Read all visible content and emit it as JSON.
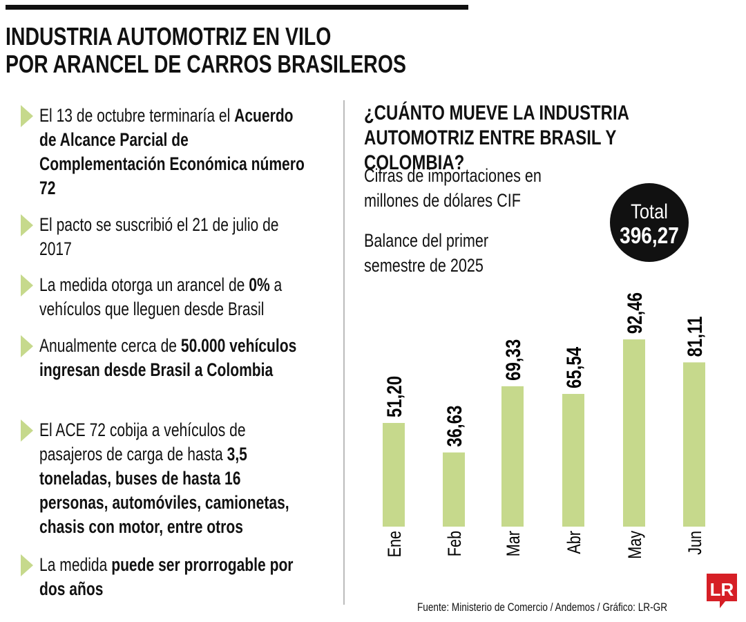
{
  "header": {
    "title": [
      "INDUSTRIA AUTOMOTRIZ EN VILO",
      "POR ARANCEL DE CARROS BRASILEROS"
    ]
  },
  "bullets": [
    [
      {
        "text": "El 13 de octubre terminaría el ",
        "bold": false
      },
      {
        "text": "Acuerdo de Alcance Parcial de Complementación Económica número 72",
        "bold": true
      }
    ],
    [
      {
        "text": "El pacto se suscribió el 21 de julio de 2017",
        "bold": false
      }
    ],
    [
      {
        "text": "La medida otorga un arancel de ",
        "bold": false
      },
      {
        "text": "0%",
        "bold": true
      },
      {
        "text": " a vehículos que lleguen desde Brasil",
        "bold": false
      }
    ],
    [
      {
        "text": "Anualmente cerca de ",
        "bold": false
      },
      {
        "text": "50.000 vehículos ingresan desde Brasil a Colombia",
        "bold": true
      }
    ],
    [
      {
        "text": "El ACE 72 cobija a vehículos de pasajeros de carga de hasta ",
        "bold": false
      },
      {
        "text": "3,5 toneladas, buses de hasta 16 personas, automóviles, camionetas, chasis con motor, entre otros",
        "bold": true
      }
    ],
    [
      {
        "text": "La medida ",
        "bold": false
      },
      {
        "text": "puede ser prorrogable por dos años",
        "bold": true
      }
    ]
  ],
  "chart_data": {
    "type": "bar",
    "title": "¿CUÁNTO MUEVE LA INDUSTRIA AUTOMOTRIZ ENTRE BRASIL Y COLOMBIA?",
    "subtitle": "Cifras de importaciones en millones de dólares CIF",
    "note": "Balance del primer semestre de 2025",
    "total": {
      "label": "Total",
      "text": "396,27"
    },
    "categories": [
      "Ene",
      "Feb",
      "Mar",
      "Abr",
      "May",
      "Jun"
    ],
    "values": [
      51.2,
      36.63,
      69.33,
      65.54,
      92.46,
      81.11
    ],
    "value_labels": [
      "51,20",
      "36,63",
      "69,33",
      "65,54",
      "92,46",
      "81,11"
    ],
    "color": "#c6d98c"
  },
  "footer": {
    "source": "Fuente: Ministerio de Comercio / Andemos / Gráfico: LR-GR",
    "logo": "LR"
  }
}
